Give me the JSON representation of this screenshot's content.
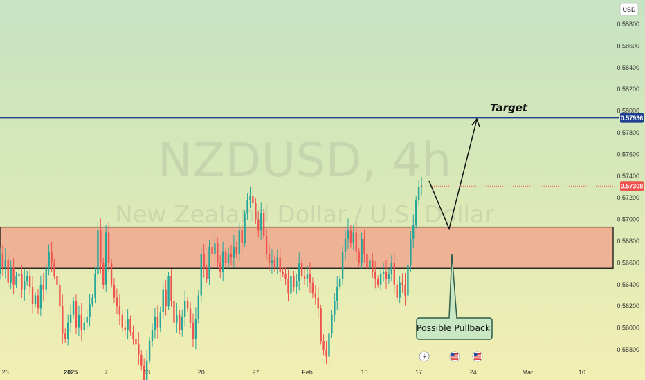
{
  "watermark": {
    "symbol": "NZDUSD, 4h",
    "name": "New Zealand Dollar / U.S. Dollar"
  },
  "currency_label": "USD",
  "colors": {
    "bull": "#26a69a",
    "bear": "#ef5350",
    "zone_fill": "#f0a88e",
    "target_line": "#1e3f8f",
    "price_line": "#ef5350",
    "callout_fill": "#c9e7c3",
    "callout_border": "#2f5e4a"
  },
  "chart_data": {
    "type": "candlestick",
    "title": "",
    "ylabel": "",
    "xlabel": "",
    "ylim": [
      0.557,
      0.5893
    ],
    "y_ticks": [
      0.588,
      0.586,
      0.584,
      0.582,
      0.58,
      0.578,
      0.576,
      0.574,
      0.572,
      0.57,
      0.568,
      0.566,
      0.564,
      0.562,
      0.56,
      0.558
    ],
    "x_ticks": [
      {
        "label": "23",
        "bar": 3,
        "bold": false
      },
      {
        "label": "2025",
        "bar": 27,
        "bold": true
      },
      {
        "label": "7",
        "bar": 40,
        "bold": false
      },
      {
        "label": "13",
        "bar": 55,
        "bold": false
      },
      {
        "label": "20",
        "bar": 75,
        "bold": false
      },
      {
        "label": "27",
        "bar": 95,
        "bold": false
      },
      {
        "label": "Feb",
        "bar": 114,
        "bold": false
      },
      {
        "label": "10",
        "bar": 135,
        "bold": false
      },
      {
        "label": "17",
        "bar": 155,
        "bold": false
      },
      {
        "label": "24",
        "bar": 175,
        "bold": false
      },
      {
        "label": "Mar",
        "bar": 195,
        "bold": false
      },
      {
        "label": "10",
        "bar": 215,
        "bold": false
      }
    ],
    "target_level": 0.57936,
    "target_label": "0.57936",
    "last_price": 0.57308,
    "last_price_label": "0.57308",
    "demand_zone": {
      "low": 0.5655,
      "high": 0.5693
    },
    "series": [
      {
        "name": "",
        "closes": [
          0.565,
          0.5668,
          0.5655,
          0.5663,
          0.5642,
          0.5655,
          0.564,
          0.5648,
          0.565,
          0.5635,
          0.5643,
          0.5648,
          0.5638,
          0.5622,
          0.563,
          0.5618,
          0.564,
          0.5635,
          0.5655,
          0.567,
          0.566,
          0.5648,
          0.564,
          0.562,
          0.5595,
          0.559,
          0.5605,
          0.5612,
          0.5625,
          0.56,
          0.5612,
          0.5598,
          0.5605,
          0.561,
          0.5622,
          0.5628,
          0.565,
          0.569,
          0.566,
          0.564,
          0.5688,
          0.566,
          0.564,
          0.5628,
          0.562,
          0.5612,
          0.56,
          0.5598,
          0.5608,
          0.5596,
          0.559,
          0.5585,
          0.5575,
          0.5565,
          0.555,
          0.557,
          0.5588,
          0.5598,
          0.561,
          0.56,
          0.5615,
          0.5635,
          0.562,
          0.5648,
          0.5625,
          0.5605,
          0.5612,
          0.5598,
          0.561,
          0.5625,
          0.5618,
          0.5605,
          0.559,
          0.5608,
          0.563,
          0.5668,
          0.5655,
          0.5645,
          0.5675,
          0.5668,
          0.5678,
          0.566,
          0.5652,
          0.567,
          0.566,
          0.5668,
          0.5665,
          0.5675,
          0.5668,
          0.569,
          0.5678,
          0.5705,
          0.5718,
          0.5722,
          0.5715,
          0.57,
          0.569,
          0.5706,
          0.5685,
          0.5668,
          0.566,
          0.5662,
          0.5656,
          0.5665,
          0.5652,
          0.565,
          0.5645,
          0.5632,
          0.5648,
          0.5638,
          0.5643,
          0.566,
          0.5648,
          0.5645,
          0.565,
          0.5642,
          0.5632,
          0.5628,
          0.5618,
          0.5588,
          0.558,
          0.5574,
          0.5595,
          0.5612,
          0.5625,
          0.5638,
          0.5645,
          0.567,
          0.5682,
          0.569,
          0.5678,
          0.5688,
          0.567,
          0.566,
          0.5682,
          0.5668,
          0.5655,
          0.5662,
          0.5652,
          0.5645,
          0.564,
          0.565,
          0.5652,
          0.5645,
          0.565,
          0.566,
          0.564,
          0.5628,
          0.5642,
          0.564,
          0.563,
          0.5658,
          0.5682,
          0.5695,
          0.5718,
          0.573,
          0.5731
        ]
      }
    ]
  },
  "annotations": {
    "target": "Target",
    "pullback": "Possible Pullback"
  },
  "events": [
    "lightning-icon",
    "us-flag-icon",
    "us-flag-icon"
  ]
}
